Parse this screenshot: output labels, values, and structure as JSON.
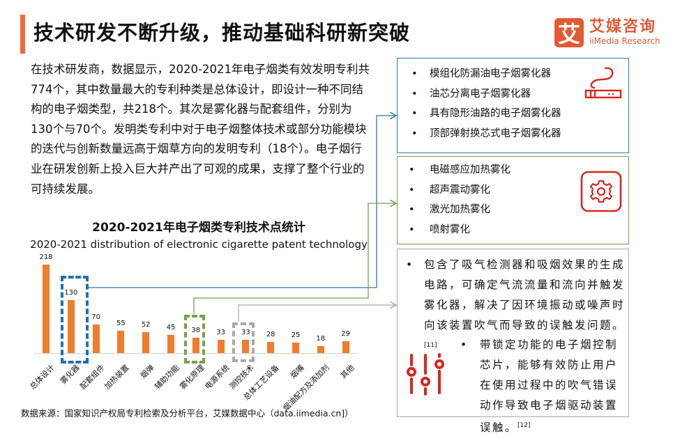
{
  "header": {
    "title": "技术研发不断升级，推动基础科研新突破",
    "accent_color": "#f26a35"
  },
  "logo": {
    "mark": "艾",
    "name_cn": "艾媒咨询",
    "name_en": "iiMedia Research",
    "color": "#e15a33"
  },
  "intro": {
    "paragraph": "在技术研发商，数据显示，2020-2021年电子烟类有效发明专利共774个，其中数量最大的专利种类是总体设计，即设计一种不同结构的电子烟类型，共218个。其次是雾化器与配套组件，分别为130个与70个。发明类专利中对于电子烟整体技术或部分功能模块的迭代与创新数量远高于烟草方向的发明专利（18个）。电子烟行业在研发创新上投入巨大并产出了可观的成果，支撑了整个行业的可持续发展。"
  },
  "chart": {
    "title": "2020-2021年电子烟类专利技术点统计",
    "subtitle": "2020-2021 distribution of electronic cigarette patent technology"
  },
  "chart_data": {
    "type": "bar",
    "title": "2020-2021年电子烟类专利技术点统计",
    "subtitle": "2020-2021 distribution of electronic cigarette patent technology",
    "categories": [
      "总体设计",
      "雾化器",
      "配套组件",
      "加热装置",
      "烟弹",
      "辅助功能",
      "雾化原理",
      "电源系统",
      "测控技术",
      "总体工艺设备",
      "烟嘴",
      "烟油配方及添加剂",
      "其他"
    ],
    "values": [
      218,
      130,
      70,
      55,
      52,
      45,
      38,
      33,
      33,
      28,
      25,
      18,
      29
    ],
    "xlabel": "",
    "ylabel": "",
    "ylim": [
      0,
      218
    ],
    "grid": false,
    "data_labels": true,
    "bar_color": "#f07c2c",
    "highlights": [
      {
        "category": "雾化器",
        "style": "dashed",
        "color": "#1f6fb5",
        "links_to": "panel_atomizer"
      },
      {
        "category": "雾化原理",
        "style": "dashed",
        "color": "#76a04a",
        "links_to": "panel_principle"
      },
      {
        "category": "测控技术",
        "style": "dashed",
        "color": "#a8a8a8",
        "links_to": "panel_control"
      }
    ]
  },
  "panels": {
    "atomizer": {
      "border_color": "#2b78a8",
      "icon": "e-cigarette-icon",
      "items": [
        "模组化防漏油电子烟雾化器",
        "油芯分离电子烟雾化器",
        "具有隐形油路的电子烟雾化器",
        "顶部弹射换芯式电子烟雾化器"
      ]
    },
    "principle": {
      "border_color": "#76a04a",
      "icon": "gear-icon",
      "items": [
        "电磁感应加热雾化",
        "超声震动雾化",
        "激光加热雾化",
        "喷射雾化"
      ]
    },
    "control": {
      "border_color": "#a8a8a8",
      "icon": "sliders-icon",
      "item1": "包含了吸气检测器和吸烟效果的生成电路，可确定气流流量和流向并触发雾化器，解决了因环境振动或噪声时向该装置吹气而导致的误触发问题。",
      "item1_ref": "[11]",
      "item2": "带锁定功能的电子烟控制芯片，能够有效防止用户在使用过程中的吹气错误动作导致电子烟驱动装置误触。",
      "item2_ref": "[12]"
    }
  },
  "icon_color": "#d9261c",
  "source": "数据来源：国家知识产权局专利检索及分析平台，艾媒数据中心（data.iimedia.cn]）"
}
